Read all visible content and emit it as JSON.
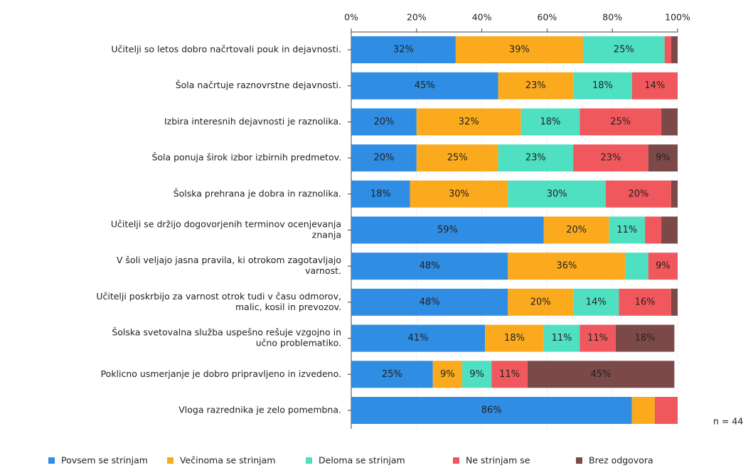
{
  "chart_data": {
    "type": "stacked-bar-horizontal",
    "categories": [
      [
        "Učitelji so letos dobro načrtovali pouk in dejavnosti."
      ],
      [
        "Šola načrtuje raznovrstne dejavnosti."
      ],
      [
        "Izbira interesnih dejavnosti je raznolika."
      ],
      [
        "Šola ponuja širok izbor izbirnih predmetov."
      ],
      [
        "Šolska prehrana je dobra in raznolika."
      ],
      [
        "Učitelji se držijo dogovorjenih terminov ocenjevanja",
        "znanja"
      ],
      [
        "V šoli veljajo jasna pravila, ki otrokom zagotavljajo",
        "varnost."
      ],
      [
        "Učitelji poskrbijo za varnost otrok tudi v času odmorov,",
        "malic, kosil in prevozov."
      ],
      [
        "Šolska svetovalna služba uspešno rešuje vzgojno in",
        "učno problematiko."
      ],
      [
        "Poklicno usmerjanje je dobro pripravljeno in izvedeno."
      ],
      [
        "Vloga razrednika je zelo pomembna."
      ]
    ],
    "series": [
      {
        "name": "Povsem se strinjam",
        "color": "#2f8de4",
        "values": [
          32,
          45,
          20,
          20,
          18,
          59,
          48,
          48,
          41,
          25,
          86
        ],
        "value_labels": [
          "32%",
          "45%",
          "20%",
          "20%",
          "18%",
          "59%",
          "48%",
          "48%",
          "41%",
          "25%",
          "86%"
        ]
      },
      {
        "name": "Večinoma se strinjam",
        "color": "#fbaa1e",
        "values": [
          39,
          23,
          32,
          25,
          30,
          20,
          36,
          20,
          18,
          9,
          7
        ],
        "value_labels": [
          "39%",
          "23%",
          "32%",
          "25%",
          "30%",
          "20%",
          "36%",
          "20%",
          "18%",
          "9%",
          null
        ]
      },
      {
        "name": "Deloma se strinjam",
        "color": "#4fe0c2",
        "values": [
          25,
          18,
          18,
          23,
          30,
          11,
          7,
          14,
          11,
          9,
          0
        ],
        "value_labels": [
          "25%",
          "18%",
          "18%",
          "23%",
          "30%",
          "11%",
          null,
          "14%",
          "11%",
          "9%",
          null
        ]
      },
      {
        "name": "Ne strinjam se",
        "color": "#f0585d",
        "values": [
          2,
          14,
          25,
          23,
          20,
          5,
          9,
          16,
          11,
          11,
          7
        ],
        "value_labels": [
          null,
          "14%",
          "25%",
          "23%",
          "20%",
          null,
          "9%",
          "16%",
          "11%",
          "11%",
          null
        ]
      },
      {
        "name": "Brez odgovora",
        "color": "#7b4a48",
        "values": [
          2,
          0,
          5,
          9,
          2,
          5,
          0,
          2,
          18,
          45,
          0
        ],
        "value_labels": [
          null,
          null,
          null,
          "9%",
          null,
          null,
          null,
          null,
          "18%",
          "45%",
          null
        ]
      }
    ],
    "xlim": [
      0,
      100
    ],
    "xticks": [
      {
        "value": 0,
        "label": "0%"
      },
      {
        "value": 20,
        "label": "20%"
      },
      {
        "value": 40,
        "label": "40%"
      },
      {
        "value": 60,
        "label": "60%"
      },
      {
        "value": 80,
        "label": "80%"
      },
      {
        "value": 100,
        "label": "100%"
      }
    ],
    "annotation": "n = 44"
  }
}
